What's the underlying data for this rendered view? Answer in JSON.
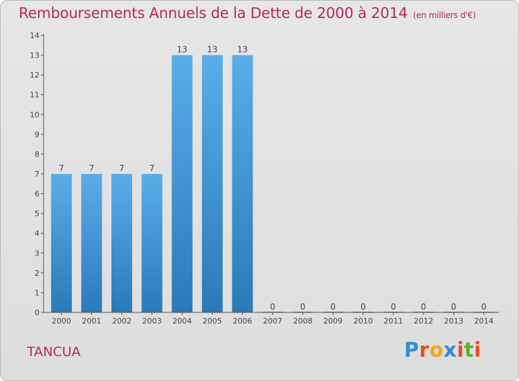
{
  "header": {
    "title": "Remboursements Annuels de la Dette de 2000 à 2014",
    "unit": "(en milliers d'€)"
  },
  "footer": {
    "commune": "TANCUA",
    "logo_letters": [
      "P",
      "r",
      "o",
      "x",
      "i",
      "t",
      "i"
    ],
    "logo_colors": [
      "#2e8fd6",
      "#e84a2a",
      "#f2a51a",
      "#2e8fd6",
      "#e84a2a",
      "#55b32e",
      "#e84a2a"
    ]
  },
  "chart_data": {
    "type": "bar",
    "title": "Remboursements Annuels de la Dette de 2000 à 2014",
    "xlabel": "",
    "ylabel": "",
    "categories": [
      "2000",
      "2001",
      "2002",
      "2003",
      "2004",
      "2005",
      "2006",
      "2007",
      "2008",
      "2009",
      "2010",
      "2011",
      "2012",
      "2013",
      "2014"
    ],
    "values": [
      7,
      7,
      7,
      7,
      13,
      13,
      13,
      0,
      0,
      0,
      0,
      0,
      0,
      0,
      0
    ],
    "ylim": [
      0,
      14
    ],
    "yticks": [
      0,
      1,
      2,
      3,
      4,
      5,
      6,
      7,
      8,
      9,
      10,
      11,
      12,
      13,
      14
    ],
    "grid": false,
    "colors": {
      "bar_top": "#5aaee8",
      "bar_bottom": "#2a7ab8",
      "axis": "#555555",
      "label": "#444444"
    }
  }
}
